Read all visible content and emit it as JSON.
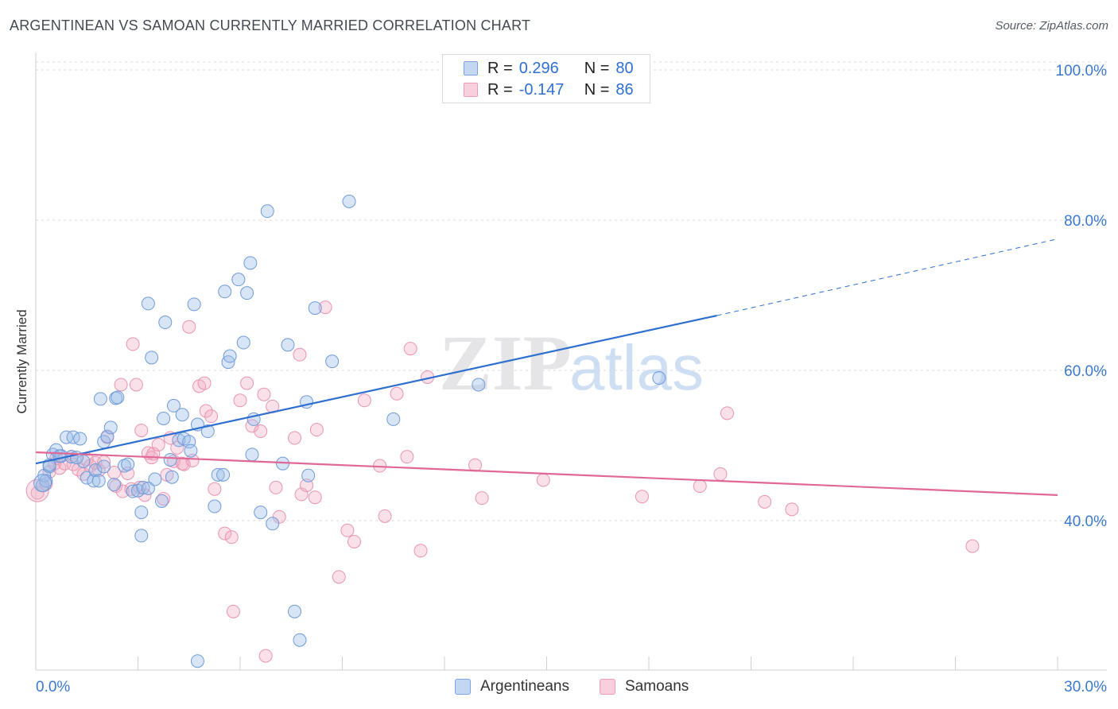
{
  "title": "ARGENTINEAN VS SAMOAN CURRENTLY MARRIED CORRELATION CHART",
  "source": "Source: ZipAtlas.com",
  "watermark": {
    "zip": "ZIP",
    "atlas": "atlas"
  },
  "legend": {
    "r_label": "R =",
    "n_label": "N =",
    "rows": [
      {
        "r": "0.296",
        "n": "80"
      },
      {
        "r": "-0.147",
        "n": "86"
      }
    ]
  },
  "chart_data": {
    "type": "scatter",
    "title": "ARGENTINEAN VS SAMOAN CURRENTLY MARRIED CORRELATION CHART",
    "ylabel": "Currently Married",
    "xlim": [
      0,
      30
    ],
    "ylim": [
      20,
      100
    ],
    "x_tick_labels": [
      "0.0%",
      "30.0%"
    ],
    "y_ticks": [
      40,
      60,
      80,
      100
    ],
    "y_tick_labels": [
      "40.0%",
      "60.0%",
      "80.0%",
      "100.0%"
    ],
    "colors": {
      "argentineans": "#9bbde9",
      "samoans": "#f2a8c1",
      "blue_line": "#2f6fd0",
      "pink_line": "#e06896",
      "tick_label": "#3a78d0"
    },
    "series": [
      {
        "name": "Argentineans",
        "r": 0.296,
        "n": 80,
        "trend": {
          "x": [
            0,
            20,
            30
          ],
          "y": [
            47.6,
            67.3,
            77.5
          ]
        },
        "points": [
          [
            0.2,
            44.7
          ],
          [
            0.25,
            46.0
          ],
          [
            0.4,
            47.2
          ],
          [
            0.5,
            48.8
          ],
          [
            0.6,
            49.4
          ],
          [
            0.75,
            48.6
          ],
          [
            0.9,
            51.1
          ],
          [
            1.05,
            48.5
          ],
          [
            1.1,
            51.1
          ],
          [
            1.3,
            50.9
          ],
          [
            1.4,
            47.9
          ],
          [
            1.5,
            45.7
          ],
          [
            1.7,
            45.3
          ],
          [
            1.75,
            46.7
          ],
          [
            1.85,
            45.3
          ],
          [
            1.9,
            56.2
          ],
          [
            2.0,
            50.5
          ],
          [
            2.1,
            51.2
          ],
          [
            2.2,
            52.4
          ],
          [
            2.3,
            44.8
          ],
          [
            2.35,
            56.3
          ],
          [
            2.4,
            56.4
          ],
          [
            2.6,
            47.3
          ],
          [
            2.7,
            47.5
          ],
          [
            2.85,
            43.9
          ],
          [
            3.0,
            44.0
          ],
          [
            3.1,
            41.1
          ],
          [
            3.15,
            44.4
          ],
          [
            3.3,
            44.3
          ],
          [
            3.1,
            38.0
          ],
          [
            3.3,
            68.9
          ],
          [
            3.4,
            61.7
          ],
          [
            3.5,
            45.5
          ],
          [
            3.7,
            42.6
          ],
          [
            3.75,
            53.6
          ],
          [
            3.8,
            66.4
          ],
          [
            3.95,
            48.1
          ],
          [
            4.05,
            55.3
          ],
          [
            4.2,
            50.7
          ],
          [
            4.3,
            54.1
          ],
          [
            4.35,
            50.9
          ],
          [
            4.5,
            50.5
          ],
          [
            4.55,
            49.3
          ],
          [
            4.65,
            68.8
          ],
          [
            4.75,
            52.8
          ],
          [
            4.75,
            21.3
          ],
          [
            5.05,
            51.9
          ],
          [
            5.25,
            41.9
          ],
          [
            5.35,
            46.1
          ],
          [
            5.5,
            46.1
          ],
          [
            5.55,
            70.5
          ],
          [
            5.65,
            61.1
          ],
          [
            5.7,
            61.9
          ],
          [
            5.95,
            72.1
          ],
          [
            6.1,
            63.7
          ],
          [
            6.2,
            70.3
          ],
          [
            6.3,
            74.3
          ],
          [
            6.35,
            48.8
          ],
          [
            6.4,
            53.5
          ],
          [
            6.6,
            41.1
          ],
          [
            6.8,
            81.2
          ],
          [
            6.95,
            39.6
          ],
          [
            7.25,
            47.6
          ],
          [
            7.4,
            63.4
          ],
          [
            7.6,
            27.9
          ],
          [
            7.75,
            24.1
          ],
          [
            7.95,
            55.8
          ],
          [
            8.0,
            46.0
          ],
          [
            8.2,
            68.3
          ],
          [
            8.7,
            61.2
          ],
          [
            9.2,
            82.5
          ],
          [
            10.5,
            53.5
          ],
          [
            13.0,
            58.1
          ],
          [
            18.3,
            59.0
          ],
          [
            0.4,
            47.4
          ],
          [
            0.7,
            48.6
          ],
          [
            1.2,
            48.4
          ],
          [
            2.0,
            47.2
          ],
          [
            4.0,
            45.8
          ],
          [
            0.3,
            45.3
          ]
        ]
      },
      {
        "name": "Samoans",
        "r": -0.147,
        "n": 86,
        "trend": {
          "x": [
            0,
            30
          ],
          "y": [
            49.1,
            43.4
          ]
        },
        "points": [
          [
            0.05,
            43.7
          ],
          [
            0.3,
            44.9
          ],
          [
            0.4,
            46.5
          ],
          [
            0.55,
            47.6
          ],
          [
            0.6,
            48.3
          ],
          [
            0.7,
            47.0
          ],
          [
            0.85,
            47.6
          ],
          [
            1.05,
            48.5
          ],
          [
            1.1,
            47.5
          ],
          [
            1.25,
            46.8
          ],
          [
            1.4,
            46.2
          ],
          [
            1.5,
            48.2
          ],
          [
            1.6,
            47.3
          ],
          [
            1.75,
            47.7
          ],
          [
            1.85,
            46.7
          ],
          [
            2.0,
            47.8
          ],
          [
            2.1,
            51.1
          ],
          [
            2.3,
            46.4
          ],
          [
            2.35,
            44.6
          ],
          [
            2.5,
            58.1
          ],
          [
            2.55,
            43.9
          ],
          [
            2.7,
            46.3
          ],
          [
            2.8,
            44.2
          ],
          [
            2.85,
            63.5
          ],
          [
            2.95,
            58.1
          ],
          [
            3.05,
            44.4
          ],
          [
            3.1,
            52.0
          ],
          [
            3.2,
            43.4
          ],
          [
            3.3,
            49.0
          ],
          [
            3.4,
            48.4
          ],
          [
            3.45,
            48.9
          ],
          [
            3.6,
            50.1
          ],
          [
            3.75,
            42.9
          ],
          [
            3.85,
            46.1
          ],
          [
            3.95,
            51.0
          ],
          [
            4.05,
            47.9
          ],
          [
            4.15,
            49.7
          ],
          [
            4.3,
            47.6
          ],
          [
            4.35,
            47.5
          ],
          [
            4.5,
            65.8
          ],
          [
            4.6,
            48.0
          ],
          [
            4.8,
            57.9
          ],
          [
            4.95,
            58.3
          ],
          [
            5.0,
            54.6
          ],
          [
            5.15,
            53.9
          ],
          [
            5.25,
            44.2
          ],
          [
            5.55,
            38.3
          ],
          [
            5.75,
            37.8
          ],
          [
            5.8,
            27.9
          ],
          [
            6.0,
            56.0
          ],
          [
            6.2,
            58.3
          ],
          [
            6.35,
            52.6
          ],
          [
            6.6,
            51.9
          ],
          [
            6.7,
            56.8
          ],
          [
            6.75,
            22.0
          ],
          [
            6.95,
            55.2
          ],
          [
            7.05,
            44.4
          ],
          [
            7.15,
            40.5
          ],
          [
            7.6,
            51.0
          ],
          [
            7.75,
            62.1
          ],
          [
            7.8,
            43.5
          ],
          [
            7.95,
            44.7
          ],
          [
            8.2,
            43.1
          ],
          [
            8.25,
            52.1
          ],
          [
            8.5,
            68.4
          ],
          [
            8.9,
            32.5
          ],
          [
            9.15,
            38.7
          ],
          [
            9.35,
            37.2
          ],
          [
            9.65,
            56.0
          ],
          [
            10.1,
            47.3
          ],
          [
            10.25,
            40.6
          ],
          [
            10.6,
            56.9
          ],
          [
            10.9,
            48.5
          ],
          [
            11.0,
            62.9
          ],
          [
            11.3,
            36.0
          ],
          [
            11.5,
            59.1
          ],
          [
            12.9,
            47.4
          ],
          [
            13.1,
            43.0
          ],
          [
            14.9,
            45.4
          ],
          [
            17.8,
            43.2
          ],
          [
            19.5,
            44.6
          ],
          [
            20.1,
            46.2
          ],
          [
            20.3,
            54.3
          ],
          [
            21.4,
            42.5
          ],
          [
            22.2,
            41.5
          ],
          [
            27.5,
            36.6
          ]
        ]
      }
    ]
  },
  "bottom_legend": [
    "Argentineans",
    "Samoans"
  ]
}
